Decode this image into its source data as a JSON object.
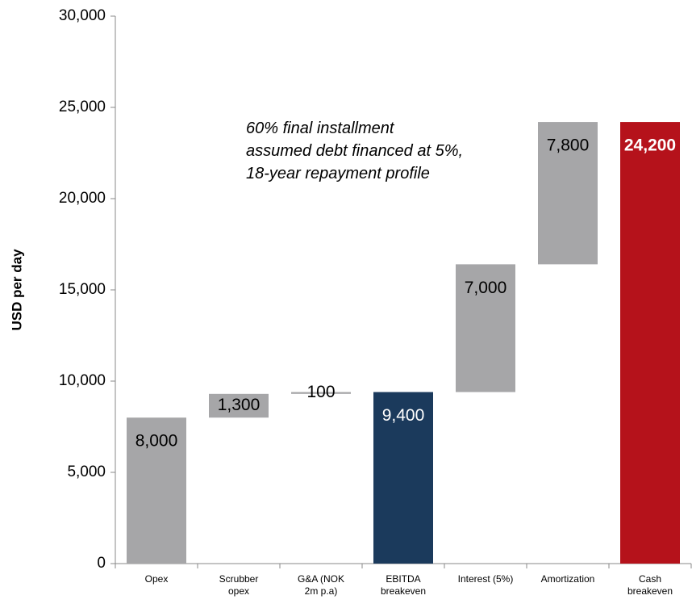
{
  "chart_data": {
    "type": "waterfall",
    "ylabel": "USD per day",
    "annotation": "60% final installment\nassumed debt financed at 5%,\n18-year repayment profile",
    "categories": [
      "Opex",
      "Scrubber\nopex",
      "G&A (NOK\n2m p.a)",
      "EBITDA\nbreakeven",
      "Interest (5%)",
      "Amortization",
      "Cash\nbreakeven"
    ],
    "values": [
      8000,
      1300,
      100,
      9400,
      7000,
      7800,
      24200
    ],
    "value_labels": [
      "8,000",
      "1,300",
      "100",
      "9,400",
      "7,000",
      "7,800",
      "24,200"
    ],
    "totals": [
      false,
      false,
      false,
      true,
      false,
      false,
      true
    ],
    "colors": [
      "#a6a6a8",
      "#a6a6a8",
      "#a6a6a8",
      "#1b3a5c",
      "#a6a6a8",
      "#a6a6a8",
      "#b5121b"
    ],
    "label_colors": [
      "#000000",
      "#000000",
      "#000000",
      "#ffffff",
      "#000000",
      "#000000",
      "#ffffff"
    ],
    "ylim": [
      0,
      30000
    ],
    "yticks": [
      0,
      {
        "value": 5000,
        "label": "5,000"
      },
      {
        "value": 10000,
        "label": "10,000"
      },
      {
        "value": 15000,
        "label": "15,000"
      },
      {
        "value": 20000,
        "label": "20,000"
      },
      {
        "value": 25000,
        "label": "25,000"
      },
      {
        "value": 30000,
        "label": "30,000"
      }
    ],
    "grid": false
  }
}
